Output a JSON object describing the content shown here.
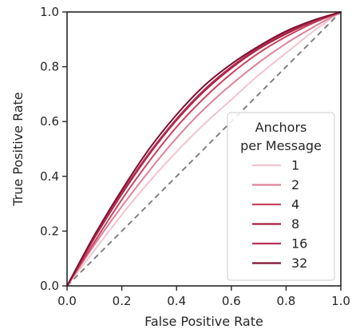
{
  "chart_data": {
    "type": "line",
    "xlabel": "False Positive Rate",
    "ylabel": "True Positive Rate",
    "xlim": [
      0,
      1
    ],
    "ylim": [
      0,
      1
    ],
    "xticks": [
      "0.0",
      "0.2",
      "0.4",
      "0.6",
      "0.8",
      "1.0"
    ],
    "yticks": [
      "0.0",
      "0.2",
      "0.4",
      "0.6",
      "0.8",
      "1.0"
    ],
    "grid": false,
    "legend": {
      "title_lines": [
        "Anchors",
        "per Message"
      ],
      "placement": "lower-right"
    },
    "x": [
      0,
      0.1,
      0.2,
      0.3,
      0.4,
      0.5,
      0.6,
      0.7,
      0.8,
      0.9,
      1.0
    ],
    "series": [
      {
        "name": "1",
        "color": "#f2c4cf",
        "values": [
          0,
          0.13,
          0.26,
          0.38,
          0.49,
          0.59,
          0.68,
          0.77,
          0.85,
          0.93,
          1.0
        ]
      },
      {
        "name": "2",
        "color": "#df8299",
        "values": [
          0,
          0.15,
          0.29,
          0.42,
          0.54,
          0.645,
          0.735,
          0.815,
          0.885,
          0.945,
          1.0
        ]
      },
      {
        "name": "4",
        "color": "#c9445f",
        "values": [
          0,
          0.16,
          0.315,
          0.455,
          0.58,
          0.685,
          0.775,
          0.85,
          0.91,
          0.96,
          1.0
        ]
      },
      {
        "name": "8",
        "color": "#a41c3c",
        "values": [
          0,
          0.175,
          0.335,
          0.48,
          0.605,
          0.71,
          0.795,
          0.865,
          0.92,
          0.965,
          1.0
        ]
      },
      {
        "name": "16",
        "color": "#b83056",
        "values": [
          0,
          0.18,
          0.34,
          0.485,
          0.61,
          0.715,
          0.8,
          0.87,
          0.925,
          0.967,
          1.0
        ]
      },
      {
        "name": "32",
        "color": "#7d1230",
        "values": [
          0,
          0.185,
          0.35,
          0.5,
          0.625,
          0.73,
          0.81,
          0.875,
          0.93,
          0.97,
          1.0
        ]
      }
    ],
    "reference_line": {
      "color": "#808080",
      "x": [
        0,
        1
      ],
      "values": [
        0,
        1
      ]
    }
  }
}
